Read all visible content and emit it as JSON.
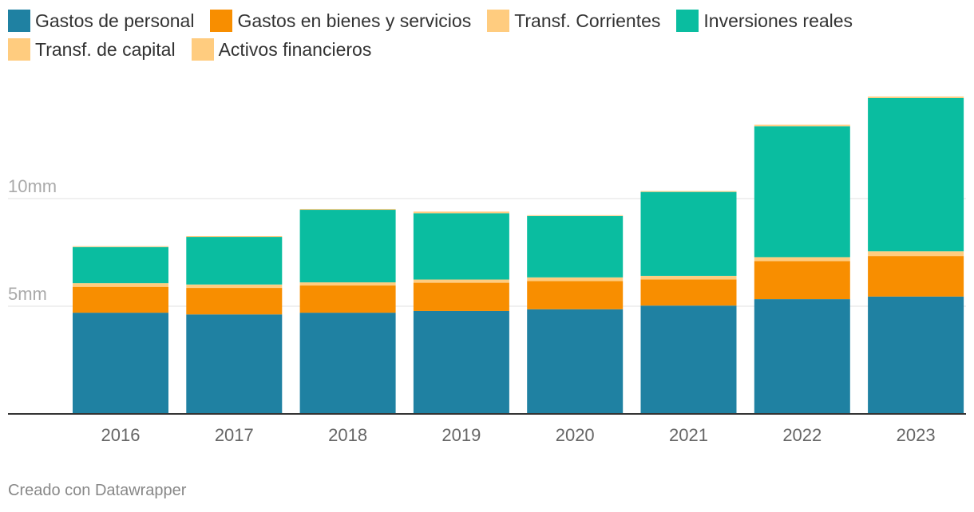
{
  "chart_data": {
    "type": "bar",
    "stacked": true,
    "title": "",
    "xlabel": "",
    "ylabel": "",
    "ylim": [
      0,
      14.8
    ],
    "y_ticks": [
      {
        "value": 5,
        "label": "5mm"
      },
      {
        "value": 10,
        "label": "10mm"
      }
    ],
    "grid": true,
    "legend_position": "top",
    "categories": [
      "2016",
      "2017",
      "2018",
      "2019",
      "2020",
      "2021",
      "2022",
      "2023"
    ],
    "series": [
      {
        "name": "Gastos de personal",
        "color": "#1f81a2",
        "values": [
          4.7,
          4.62,
          4.7,
          4.78,
          4.86,
          5.03,
          5.33,
          5.45
        ]
      },
      {
        "name": "Gastos en bienes y servicios",
        "color": "#f88e00",
        "values": [
          1.2,
          1.23,
          1.27,
          1.31,
          1.31,
          1.21,
          1.77,
          1.88
        ]
      },
      {
        "name": "Transf. Corrientes",
        "color": "#ffcc7f",
        "values": [
          0.17,
          0.16,
          0.14,
          0.15,
          0.17,
          0.17,
          0.18,
          0.22
        ]
      },
      {
        "name": "Inversiones reales",
        "color": "#0abda0",
        "values": [
          1.68,
          2.21,
          3.37,
          3.08,
          2.85,
          3.9,
          6.08,
          7.12
        ]
      },
      {
        "name": "Transf. de capital",
        "color": "#ffcc7f",
        "values": [
          0.02,
          0.02,
          0.02,
          0.06,
          0.02,
          0.02,
          0.05,
          0.05
        ]
      },
      {
        "name": "Activos financieros",
        "color": "#ffcc7f",
        "values": [
          0.02,
          0.02,
          0.02,
          0.02,
          0.02,
          0.02,
          0.02,
          0.02
        ]
      }
    ]
  },
  "legend_rows": [
    [
      0,
      1,
      2,
      3
    ],
    [
      4,
      5
    ]
  ],
  "footer": {
    "credit": "Creado con Datawrapper"
  }
}
